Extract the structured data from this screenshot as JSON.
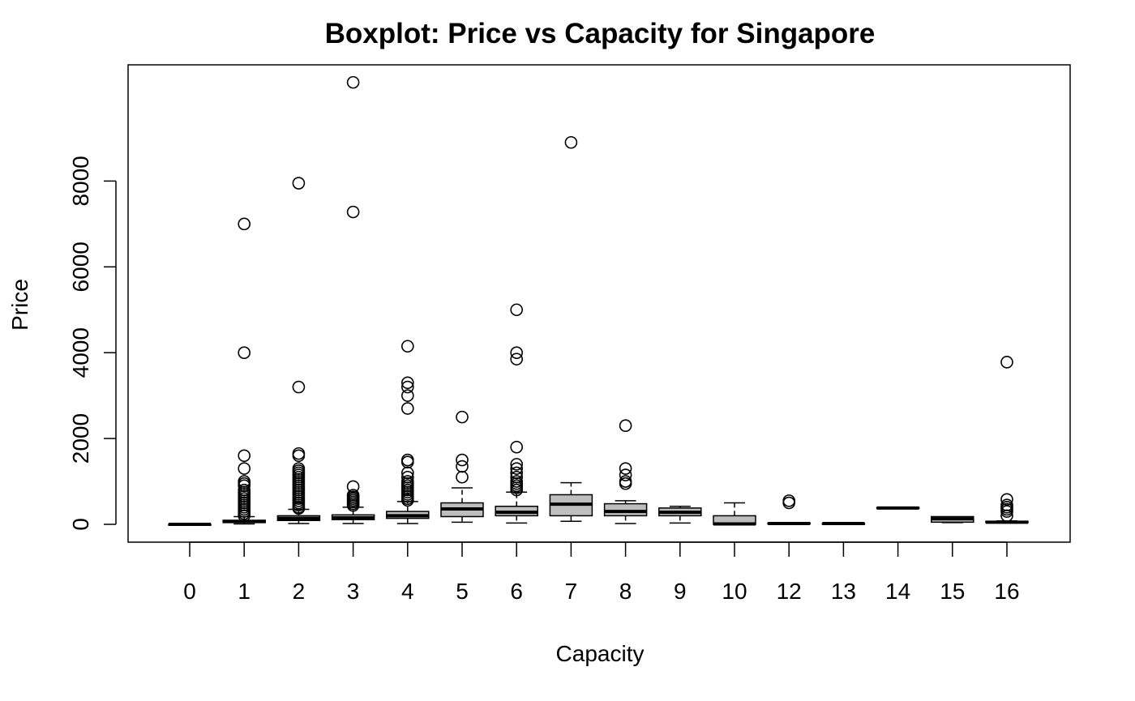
{
  "chart_data": {
    "type": "boxplot",
    "title": "Boxplot: Price vs Capacity for Singapore",
    "xlabel": "Capacity",
    "ylabel": "Price",
    "ylim": [
      -400,
      10350
    ],
    "yticks": [
      0,
      2000,
      4000,
      6000,
      8000
    ],
    "grid": false,
    "box_fill": "#bebebe",
    "categories": [
      "0",
      "1",
      "2",
      "3",
      "4",
      "5",
      "6",
      "7",
      "8",
      "9",
      "10",
      "12",
      "13",
      "14",
      "15",
      "16"
    ],
    "boxes": [
      {
        "category": "0",
        "whisker_low": 0,
        "q1": 0,
        "median": 0,
        "q3": 0,
        "whisker_high": 0,
        "outliers": []
      },
      {
        "category": "1",
        "whisker_low": 10,
        "q1": 40,
        "median": 65,
        "q3": 95,
        "whisker_high": 180,
        "outliers": [
          7000,
          4000,
          1600,
          1300,
          1000,
          950,
          900,
          800,
          750,
          700,
          650,
          600,
          550,
          500,
          450,
          400,
          350,
          300,
          250,
          200
        ]
      },
      {
        "category": "2",
        "whisker_low": 20,
        "q1": 90,
        "median": 140,
        "q3": 200,
        "whisker_high": 350,
        "outliers": [
          7950,
          3200,
          1650,
          1600,
          1300,
          1250,
          1200,
          1150,
          1100,
          1050,
          1000,
          950,
          900,
          850,
          800,
          750,
          700,
          650,
          600,
          550,
          500,
          450,
          400,
          370
        ]
      },
      {
        "category": "3",
        "whisker_low": 20,
        "q1": 110,
        "median": 150,
        "q3": 220,
        "whisker_high": 400,
        "outliers": [
          10300,
          7280,
          880,
          680,
          640,
          600,
          560,
          520,
          480,
          440
        ]
      },
      {
        "category": "4",
        "whisker_low": 20,
        "q1": 140,
        "median": 200,
        "q3": 300,
        "whisker_high": 530,
        "outliers": [
          4150,
          3300,
          3200,
          3000,
          2700,
          1500,
          1450,
          1200,
          1100,
          1000,
          950,
          900,
          850,
          800,
          750,
          700,
          650,
          600,
          560
        ]
      },
      {
        "category": "5",
        "whisker_low": 50,
        "q1": 180,
        "median": 360,
        "q3": 500,
        "whisker_high": 850,
        "outliers": [
          2500,
          1500,
          1350,
          1100
        ]
      },
      {
        "category": "6",
        "whisker_low": 30,
        "q1": 200,
        "median": 280,
        "q3": 420,
        "whisker_high": 750,
        "outliers": [
          5000,
          4000,
          3850,
          1800,
          1400,
          1300,
          1200,
          1100,
          1000,
          950,
          900,
          850,
          800
        ]
      },
      {
        "category": "7",
        "whisker_low": 70,
        "q1": 200,
        "median": 470,
        "q3": 690,
        "whisker_high": 970,
        "outliers": [
          8900
        ]
      },
      {
        "category": "8",
        "whisker_low": 20,
        "q1": 200,
        "median": 300,
        "q3": 480,
        "whisker_high": 550,
        "outliers": [
          2300,
          1300,
          1150,
          1000,
          950
        ]
      },
      {
        "category": "9",
        "whisker_low": 30,
        "q1": 200,
        "median": 280,
        "q3": 380,
        "whisker_high": 420,
        "outliers": []
      },
      {
        "category": "10",
        "whisker_low": 0,
        "q1": 0,
        "median": 10,
        "q3": 200,
        "whisker_high": 500,
        "outliers": []
      },
      {
        "category": "12",
        "whisker_low": 20,
        "q1": 20,
        "median": 20,
        "q3": 30,
        "whisker_high": 30,
        "outliers": [
          550,
          500
        ]
      },
      {
        "category": "13",
        "whisker_low": 20,
        "q1": 20,
        "median": 20,
        "q3": 20,
        "whisker_high": 20,
        "outliers": []
      },
      {
        "category": "14",
        "whisker_low": 380,
        "q1": 380,
        "median": 380,
        "q3": 390,
        "whisker_high": 390,
        "outliers": []
      },
      {
        "category": "15",
        "whisker_low": 40,
        "q1": 50,
        "median": 130,
        "q3": 180,
        "whisker_high": 180,
        "outliers": []
      },
      {
        "category": "16",
        "whisker_low": 30,
        "q1": 40,
        "median": 50,
        "q3": 70,
        "whisker_high": 80,
        "outliers": [
          3780,
          580,
          450,
          400,
          350,
          300,
          200
        ]
      }
    ]
  }
}
